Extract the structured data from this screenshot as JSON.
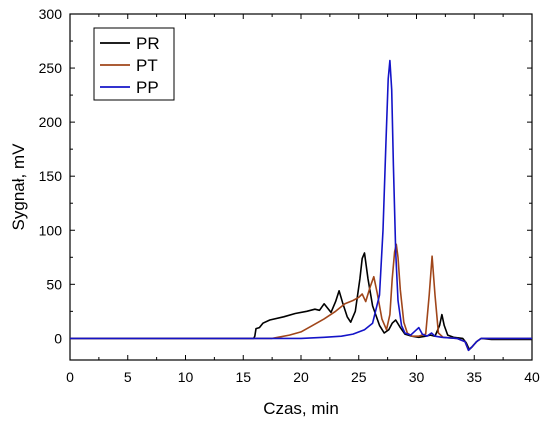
{
  "chart_data": {
    "type": "line",
    "xlabel": "Czas, min",
    "ylabel": "Sygnał, mV",
    "xlim": [
      0,
      40
    ],
    "ylim": [
      -20,
      300
    ],
    "x_ticks": [
      0,
      5,
      10,
      15,
      20,
      25,
      30,
      35,
      40
    ],
    "y_ticks": [
      0,
      50,
      100,
      150,
      200,
      250,
      300
    ],
    "grid": false,
    "legend_position": "top-left",
    "series": [
      {
        "name": "PR",
        "color": "#000000",
        "points": [
          [
            0,
            0
          ],
          [
            15.9,
            0
          ],
          [
            16.0,
            2
          ],
          [
            16.1,
            9
          ],
          [
            16.4,
            10
          ],
          [
            16.7,
            14
          ],
          [
            17.3,
            17
          ],
          [
            18.5,
            20
          ],
          [
            19.5,
            23
          ],
          [
            20.5,
            25
          ],
          [
            21.2,
            27
          ],
          [
            21.6,
            26
          ],
          [
            22.0,
            32
          ],
          [
            22.3,
            28
          ],
          [
            22.6,
            24
          ],
          [
            23.0,
            34
          ],
          [
            23.3,
            44
          ],
          [
            23.6,
            33
          ],
          [
            24.0,
            20
          ],
          [
            24.3,
            15
          ],
          [
            24.7,
            25
          ],
          [
            25.1,
            55
          ],
          [
            25.3,
            74
          ],
          [
            25.5,
            79
          ],
          [
            25.8,
            55
          ],
          [
            26.2,
            30
          ],
          [
            26.8,
            12
          ],
          [
            27.2,
            5
          ],
          [
            27.6,
            8
          ],
          [
            27.9,
            14
          ],
          [
            28.2,
            17
          ],
          [
            28.6,
            10
          ],
          [
            29.0,
            4
          ],
          [
            29.6,
            2
          ],
          [
            30.2,
            1
          ],
          [
            30.8,
            2
          ],
          [
            31.2,
            3
          ],
          [
            31.6,
            2
          ],
          [
            32.0,
            12
          ],
          [
            32.2,
            22
          ],
          [
            32.4,
            12
          ],
          [
            32.7,
            3
          ],
          [
            33.2,
            1
          ],
          [
            34.0,
            0
          ],
          [
            34.3,
            -4
          ],
          [
            34.55,
            -10
          ],
          [
            34.8,
            -8
          ],
          [
            35.2,
            -3
          ],
          [
            35.6,
            0
          ],
          [
            36.5,
            -1
          ],
          [
            38.0,
            -1
          ],
          [
            40.0,
            -1
          ]
        ]
      },
      {
        "name": "PT",
        "color": "#a0461a",
        "points": [
          [
            0,
            0
          ],
          [
            17.5,
            0
          ],
          [
            18.0,
            1
          ],
          [
            19.0,
            3
          ],
          [
            20.0,
            6
          ],
          [
            21.0,
            12
          ],
          [
            22.0,
            18
          ],
          [
            23.0,
            25
          ],
          [
            23.8,
            32
          ],
          [
            24.5,
            35
          ],
          [
            25.0,
            38
          ],
          [
            25.3,
            41
          ],
          [
            25.6,
            34
          ],
          [
            26.0,
            48
          ],
          [
            26.3,
            57
          ],
          [
            26.6,
            42
          ],
          [
            27.0,
            18
          ],
          [
            27.4,
            8
          ],
          [
            27.7,
            22
          ],
          [
            27.9,
            55
          ],
          [
            28.1,
            80
          ],
          [
            28.25,
            87
          ],
          [
            28.4,
            75
          ],
          [
            28.6,
            45
          ],
          [
            28.9,
            15
          ],
          [
            29.2,
            5
          ],
          [
            29.6,
            2
          ],
          [
            30.2,
            2
          ],
          [
            30.8,
            4
          ],
          [
            31.1,
            40
          ],
          [
            31.35,
            76
          ],
          [
            31.6,
            40
          ],
          [
            31.9,
            5
          ],
          [
            32.3,
            1
          ],
          [
            33.5,
            0
          ],
          [
            34.2,
            -3
          ],
          [
            34.5,
            -11
          ],
          [
            34.8,
            -8
          ],
          [
            35.2,
            -3
          ],
          [
            35.6,
            0
          ],
          [
            37.0,
            0
          ],
          [
            40.0,
            0
          ]
        ]
      },
      {
        "name": "PP",
        "color": "#1414c8",
        "points": [
          [
            0,
            0
          ],
          [
            20.0,
            0
          ],
          [
            22.0,
            1
          ],
          [
            23.5,
            2
          ],
          [
            24.5,
            4
          ],
          [
            25.5,
            8
          ],
          [
            26.2,
            14
          ],
          [
            26.8,
            40
          ],
          [
            27.1,
            100
          ],
          [
            27.35,
            180
          ],
          [
            27.55,
            240
          ],
          [
            27.7,
            257
          ],
          [
            27.85,
            230
          ],
          [
            28.0,
            160
          ],
          [
            28.2,
            80
          ],
          [
            28.4,
            35
          ],
          [
            28.7,
            12
          ],
          [
            29.0,
            5
          ],
          [
            29.5,
            3
          ],
          [
            29.9,
            7
          ],
          [
            30.2,
            10
          ],
          [
            30.5,
            4
          ],
          [
            30.9,
            2
          ],
          [
            31.3,
            5
          ],
          [
            31.6,
            2
          ],
          [
            32.2,
            1
          ],
          [
            33.5,
            0
          ],
          [
            34.2,
            -3
          ],
          [
            34.5,
            -11
          ],
          [
            34.8,
            -8
          ],
          [
            35.2,
            -3
          ],
          [
            35.6,
            0
          ],
          [
            37.0,
            0
          ],
          [
            40.0,
            0
          ]
        ]
      }
    ]
  }
}
